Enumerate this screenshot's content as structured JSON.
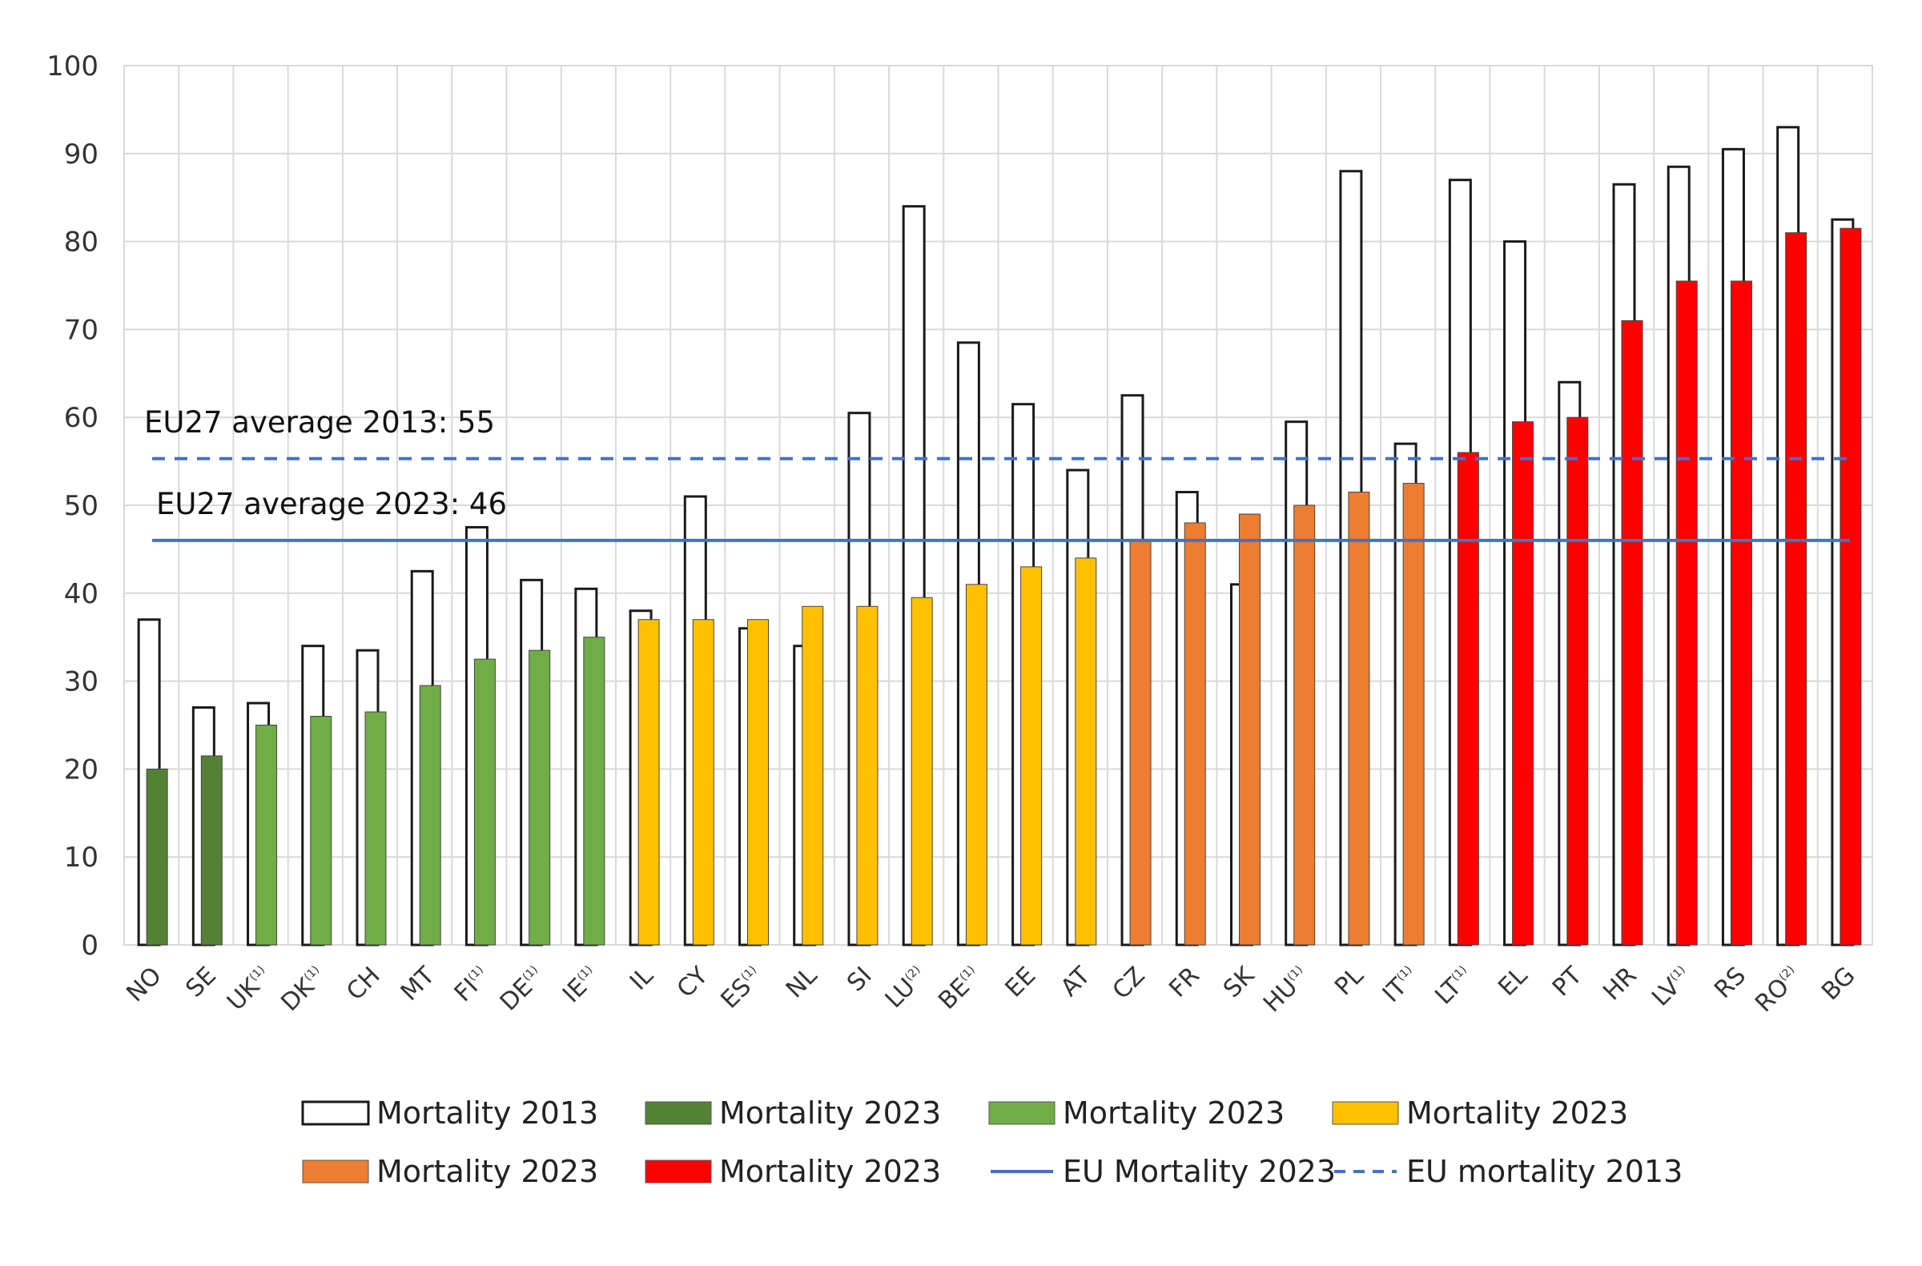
{
  "chart_data": {
    "type": "bar",
    "title": "",
    "xlabel": "",
    "ylabel": "",
    "ylim": [
      0,
      100
    ],
    "yticks": [
      0,
      10,
      20,
      30,
      40,
      50,
      60,
      70,
      80,
      90,
      100
    ],
    "grid": true,
    "categories": [
      {
        "code": "NO",
        "sup": ""
      },
      {
        "code": "SE",
        "sup": ""
      },
      {
        "code": "UK",
        "sup": "(1)"
      },
      {
        "code": "DK",
        "sup": "(1)"
      },
      {
        "code": "CH",
        "sup": ""
      },
      {
        "code": "MT",
        "sup": ""
      },
      {
        "code": "FI",
        "sup": "(1)"
      },
      {
        "code": "DE",
        "sup": "(1)"
      },
      {
        "code": "IE",
        "sup": "(1)"
      },
      {
        "code": "IL",
        "sup": ""
      },
      {
        "code": "CY",
        "sup": ""
      },
      {
        "code": "ES",
        "sup": "(1)"
      },
      {
        "code": "NL",
        "sup": ""
      },
      {
        "code": "SI",
        "sup": ""
      },
      {
        "code": "LU",
        "sup": "(2)"
      },
      {
        "code": "BE",
        "sup": "(1)"
      },
      {
        "code": "EE",
        "sup": ""
      },
      {
        "code": "AT",
        "sup": ""
      },
      {
        "code": "CZ",
        "sup": ""
      },
      {
        "code": "FR",
        "sup": ""
      },
      {
        "code": "SK",
        "sup": ""
      },
      {
        "code": "HU",
        "sup": "(1)"
      },
      {
        "code": "PL",
        "sup": ""
      },
      {
        "code": "IT",
        "sup": "(1)"
      },
      {
        "code": "LT",
        "sup": "(1)"
      },
      {
        "code": "EL",
        "sup": ""
      },
      {
        "code": "PT",
        "sup": ""
      },
      {
        "code": "HR",
        "sup": ""
      },
      {
        "code": "LV",
        "sup": "(1)"
      },
      {
        "code": "RS",
        "sup": ""
      },
      {
        "code": "RO",
        "sup": "(2)"
      },
      {
        "code": "BG",
        "sup": ""
      }
    ],
    "series": [
      {
        "name": "Mortality 2013",
        "style": "outline",
        "values": [
          37,
          27,
          27.5,
          34,
          33.5,
          42.5,
          47.5,
          41.5,
          40.5,
          38,
          51,
          36,
          34,
          60.5,
          84,
          68.5,
          61.5,
          54,
          62.5,
          51.5,
          41,
          59.5,
          88,
          57,
          87,
          80,
          64,
          86.5,
          88.5,
          90.5,
          93,
          82.5
        ]
      },
      {
        "name": "Mortality 2023",
        "style": "filled",
        "values": [
          20,
          21.5,
          25,
          26,
          26.5,
          29.5,
          32.5,
          33.5,
          35,
          37,
          37,
          37,
          38.5,
          38.5,
          39.5,
          41,
          43,
          44,
          46,
          48,
          49,
          50,
          51.5,
          52.5,
          56,
          59.5,
          60,
          71,
          75.5,
          75.5,
          81,
          81.5
        ],
        "color_groups": [
          0,
          0,
          1,
          1,
          1,
          1,
          1,
          1,
          1,
          2,
          2,
          2,
          2,
          2,
          2,
          2,
          2,
          2,
          3,
          3,
          3,
          3,
          3,
          3,
          4,
          4,
          4,
          4,
          4,
          4,
          4,
          4
        ]
      }
    ],
    "group_colors": [
      "#548235",
      "#70AD47",
      "#FFC000",
      "#ED7D31",
      "#FF0000"
    ],
    "reference_lines": [
      {
        "name": "EU Mortality 2023",
        "value": 46,
        "style": "solid",
        "color": "#4472C4",
        "label": "EU27 average 2023: 46"
      },
      {
        "name": "EU mortality 2013",
        "value": 55.3,
        "style": "dashed",
        "color": "#4472C4",
        "label": "EU27 average 2013: 55"
      }
    ],
    "legend": {
      "position": "bottom",
      "entries": [
        {
          "label": "Mortality 2013",
          "kind": "outline",
          "color": "#ffffff"
        },
        {
          "label": "Mortality 2023",
          "kind": "fill",
          "color": "#548235"
        },
        {
          "label": "Mortality 2023",
          "kind": "fill",
          "color": "#70AD47"
        },
        {
          "label": "Mortality 2023",
          "kind": "fill",
          "color": "#FFC000"
        },
        {
          "label": "Mortality 2023",
          "kind": "fill",
          "color": "#ED7D31"
        },
        {
          "label": "Mortality 2023",
          "kind": "fill",
          "color": "#FF0000"
        },
        {
          "label": "EU Mortality 2023",
          "kind": "line-solid",
          "color": "#4472C4"
        },
        {
          "label": "EU mortality 2013",
          "kind": "line-dashed",
          "color": "#4472C4"
        }
      ]
    }
  }
}
